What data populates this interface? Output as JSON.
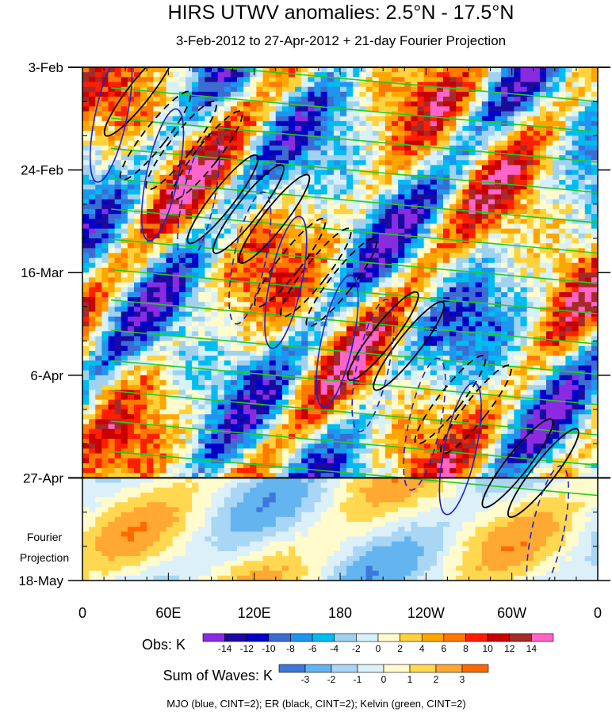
{
  "chart_data": {
    "type": "heatmap",
    "title": "HIRS UTWV anomalies: 2.5°N - 17.5°N",
    "subtitle": "3-Feb-2012 to 27-Apr-2012 + 21-day Fourier Projection",
    "xlabel": "",
    "ylabel": "",
    "x_ticks": [
      "0",
      "60E",
      "120E",
      "180",
      "120W",
      "60W",
      "0"
    ],
    "x_tick_degrees": [
      0,
      60,
      120,
      180,
      240,
      300,
      360
    ],
    "xlim_degrees": [
      0,
      360
    ],
    "y_ticks": [
      "3-Feb",
      "24-Feb",
      "16-Mar",
      "6-Apr",
      "27-Apr",
      "18-May"
    ],
    "y_tick_days": [
      0,
      21,
      42,
      63,
      84,
      105
    ],
    "ylim_days": [
      0,
      105
    ],
    "observation_end_day": 84,
    "projection_label_line1": "Fourier",
    "projection_label_line2": "Projection",
    "colorbar_obs": {
      "label": "Obs: K",
      "ticks": [
        "-14",
        "-12",
        "-10",
        "-8",
        "-6",
        "-4",
        "-2",
        "0",
        "2",
        "4",
        "6",
        "8",
        "10",
        "12",
        "14"
      ],
      "colors": [
        "#8a2be2",
        "#1a0aa0",
        "#0000c8",
        "#3c6cd2",
        "#1e96f0",
        "#00bcf0",
        "#a0d2f0",
        "#d8f0f8",
        "#fffbcc",
        "#ffd23c",
        "#ffa500",
        "#ff7800",
        "#ff1e00",
        "#c80000",
        "#a52a2a",
        "#ff64c8"
      ]
    },
    "colorbar_waves": {
      "label": "Sum of Waves: K",
      "ticks": [
        "-3",
        "-2",
        "-1",
        "0",
        "1",
        "2",
        "3"
      ],
      "colors": [
        "#3c78dc",
        "#64b4f0",
        "#a8d6f4",
        "#dcf0fa",
        "#fffbcc",
        "#ffd850",
        "#ffa832",
        "#ff6a00"
      ]
    },
    "legend_note": "MJO (blue, CINT=2); ER (black, CINT=2); Kelvin (green, CINT=2)",
    "series_colors": {
      "mjo": "#2222cc",
      "er": "#000000",
      "kelvin": "#22cc22"
    }
  }
}
